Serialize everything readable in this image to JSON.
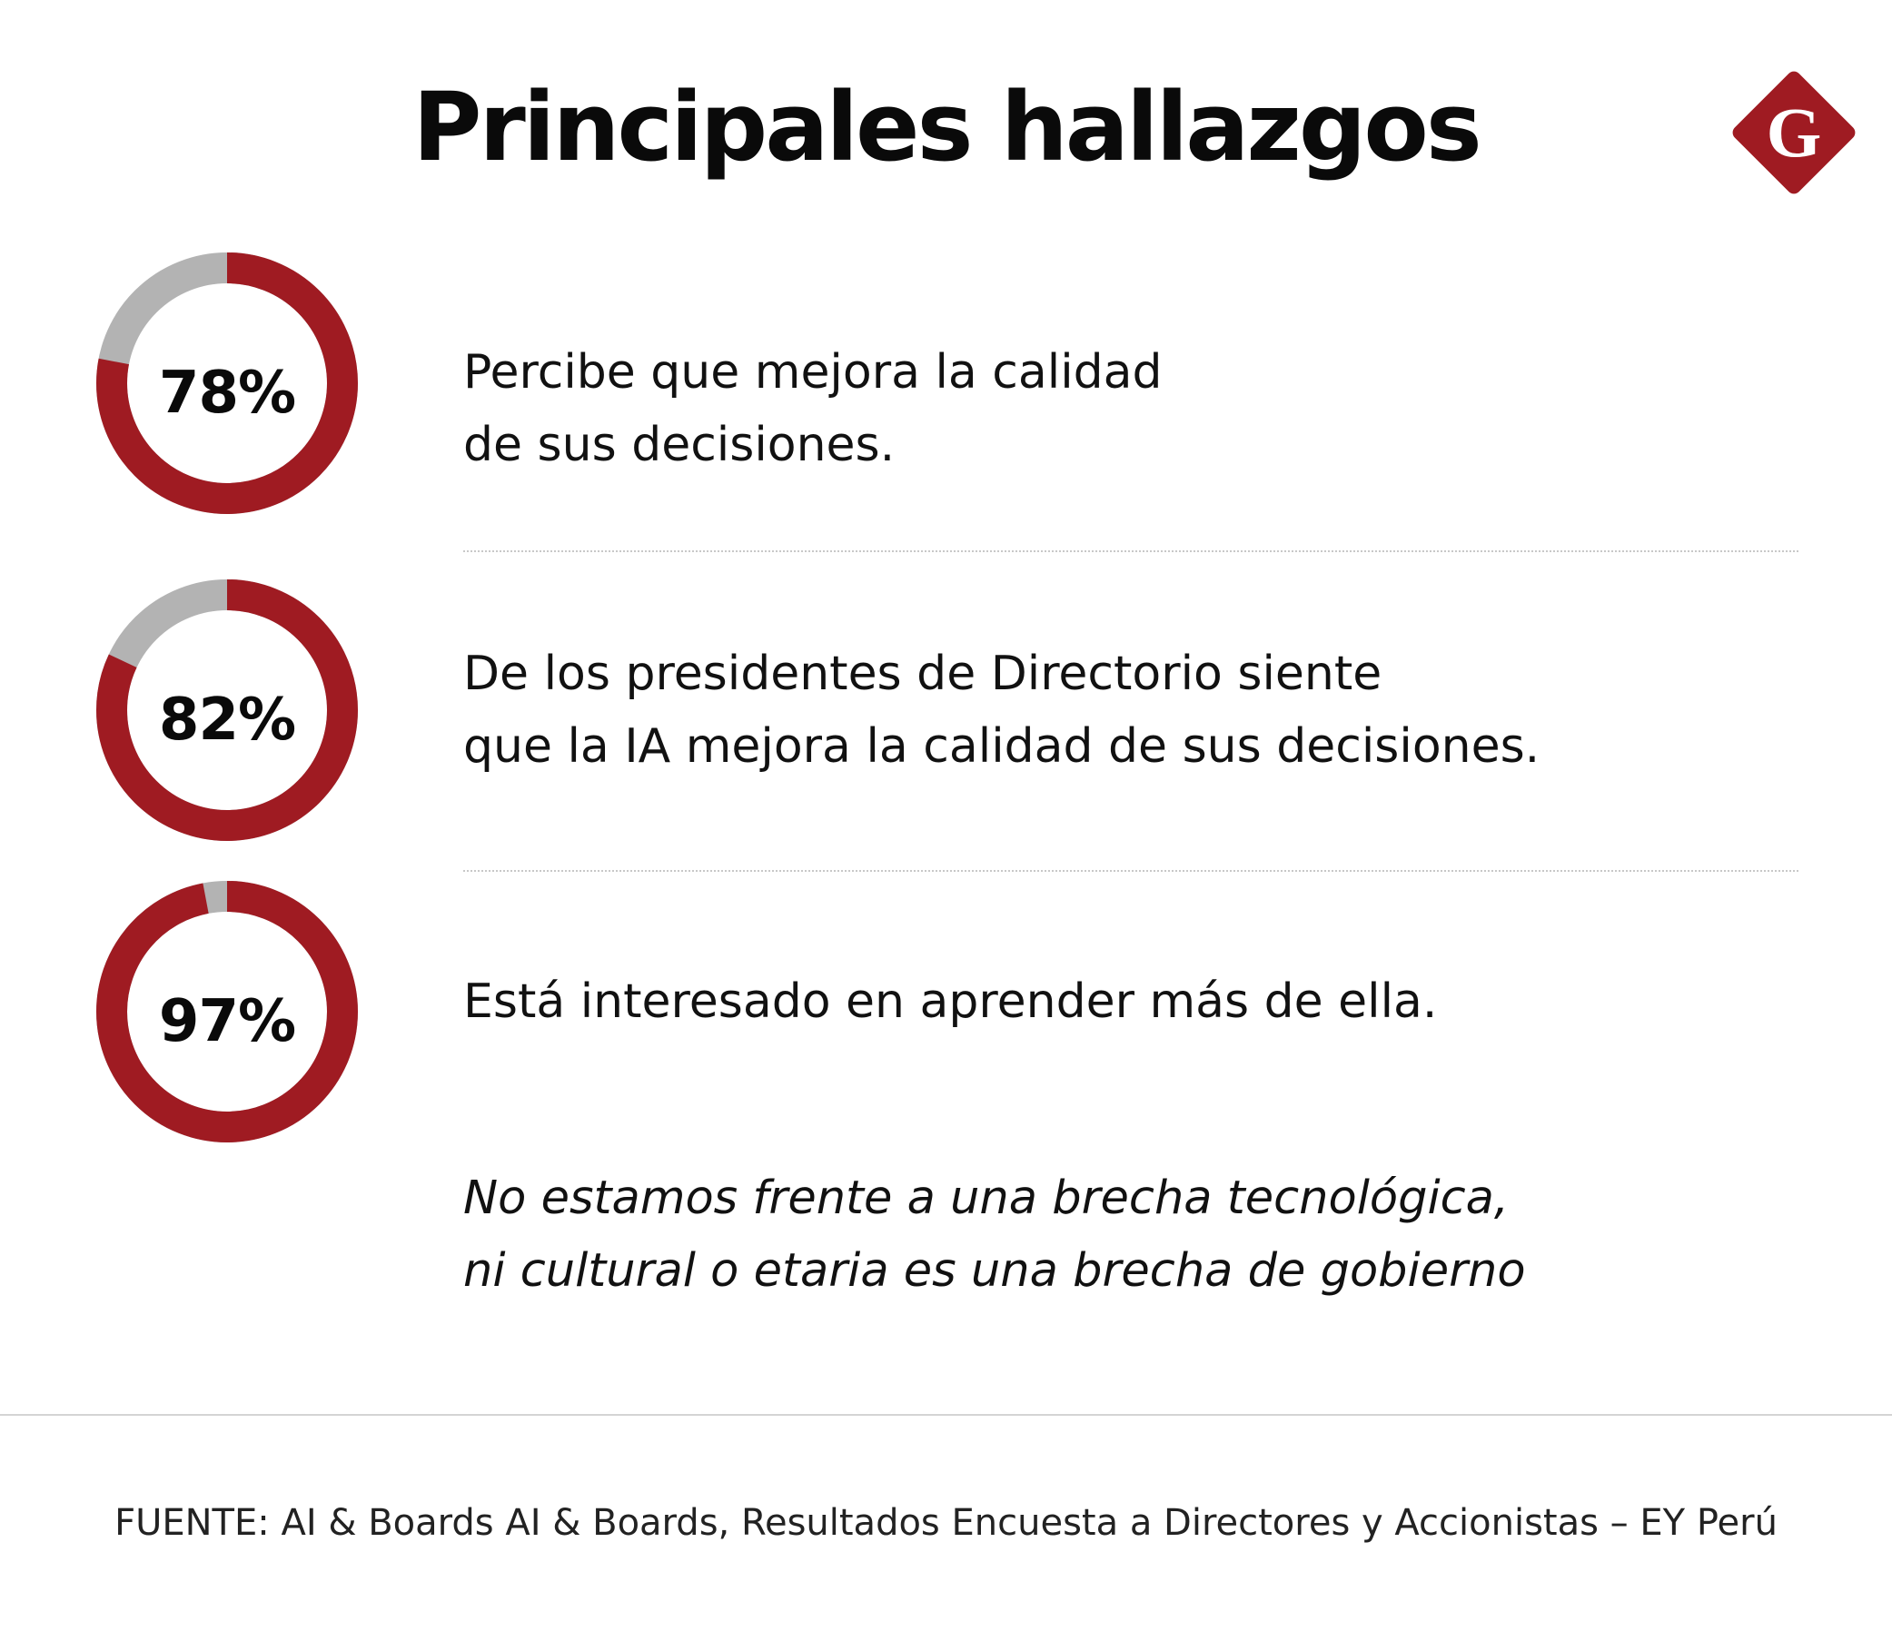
{
  "title": "Principales hallazgos",
  "logo": {
    "letter": "G",
    "icon": "diamond-g-logo",
    "color": "#9f1b22"
  },
  "colors": {
    "accent": "#9f1b22",
    "remainder": "#b3b3b3",
    "text": "#111111"
  },
  "chart_data": {
    "type": "pie",
    "variant": "donut",
    "items": [
      {
        "value": 78,
        "label": "78%",
        "description": [
          "Percibe que mejora la calidad",
          "de sus decisiones."
        ]
      },
      {
        "value": 82,
        "label": "82%",
        "description": [
          "De los presidentes de Directorio siente",
          "que la IA mejora la calidad de sus decisiones."
        ]
      },
      {
        "value": 97,
        "label": "97%",
        "description": [
          "Está interesado en aprender más de ella."
        ]
      }
    ]
  },
  "quote": [
    "No estamos frente a una brecha tecnológica,",
    "ni cultural o etaria es una brecha de gobierno"
  ],
  "source": "FUENTE: AI & Boards AI & Boards, Resultados Encuesta a Directores y Accionistas – EY Perú"
}
